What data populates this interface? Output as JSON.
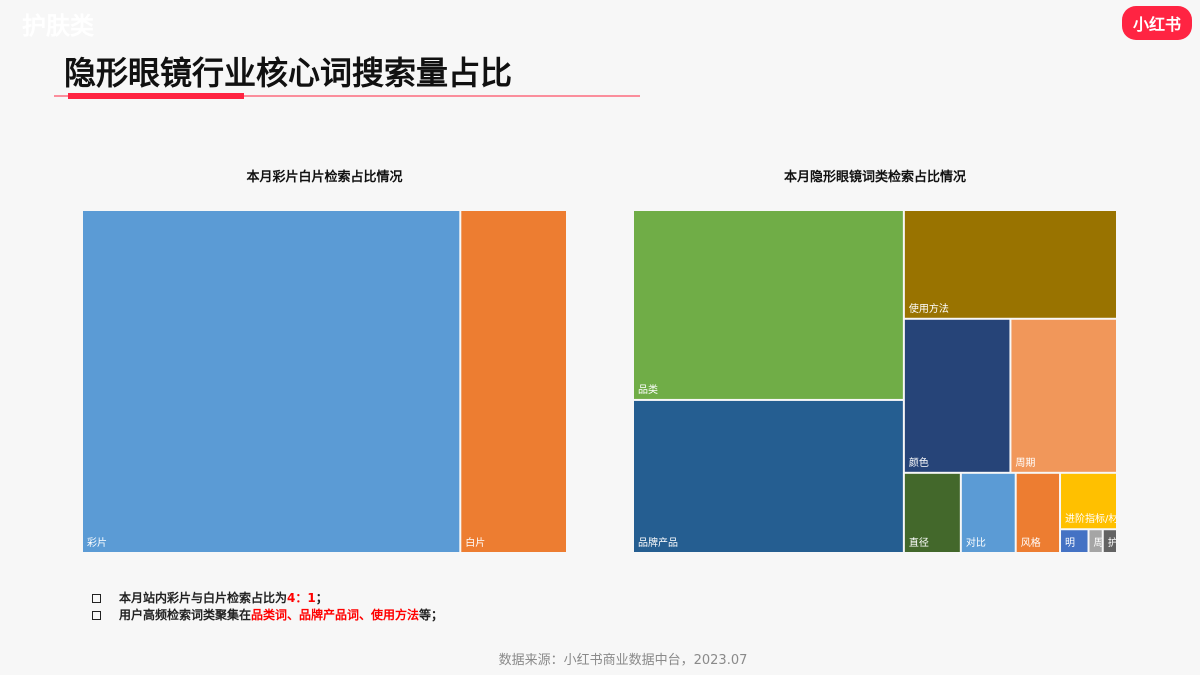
{
  "header": {
    "category": "护肤类",
    "title": "隐形眼镜行业核心词搜索量占比",
    "logo": "小红书"
  },
  "chart_data": [
    {
      "type": "treemap",
      "title": "本月彩片白片检索占比情况",
      "categories": [
        "彩片",
        "白片"
      ],
      "values": [
        78,
        22
      ],
      "colors": [
        "#5b9bd5",
        "#ed7d31"
      ]
    },
    {
      "type": "treemap",
      "title": "本月隐形眼镜词类检索占比情况",
      "categories": [
        "品类",
        "品牌产品",
        "使用方法",
        "颜色",
        "周期",
        "直径",
        "对比",
        "风格",
        "进阶指标/材料",
        "明",
        "周",
        "护"
      ],
      "values": [
        30.4,
        24.5,
        13.7,
        9.7,
        9.7,
        2.7,
        2.6,
        2.1,
        1.9,
        0.4,
        0.2,
        0.2
      ],
      "colors": [
        "#70ad47",
        "#255e91",
        "#997300",
        "#264478",
        "#f1975a",
        "#43682b",
        "#5b9bd5",
        "#ed7d31",
        "#ffc000",
        "#4472c4",
        "#a5a5a5",
        "#636363"
      ]
    }
  ],
  "notes": [
    [
      {
        "text": "本月站内彩片与白片检索占比为",
        "highlight": false
      },
      {
        "text": "4：1",
        "highlight": true
      },
      {
        "text": "；",
        "highlight": false
      }
    ],
    [
      {
        "text": "用户高频检索词类聚集在",
        "highlight": false
      },
      {
        "text": "品类词、品牌产品词、使用方法",
        "highlight": true
      },
      {
        "text": "等；",
        "highlight": false
      }
    ]
  ],
  "source": "数据来源：小红书商业数据中台，2023.07"
}
